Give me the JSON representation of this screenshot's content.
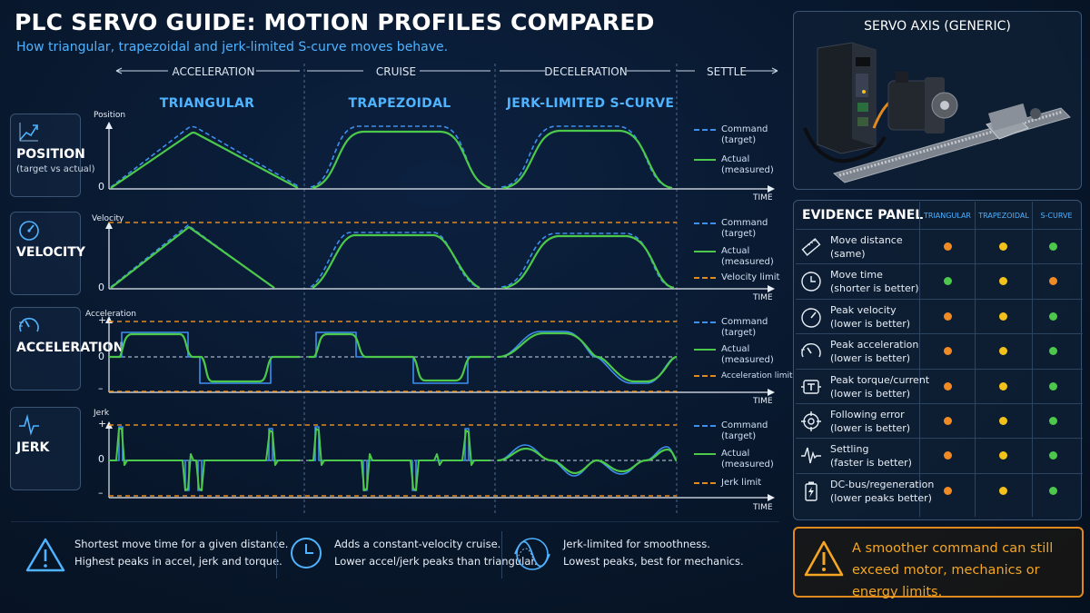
{
  "title": "PLC SERVO GUIDE: MOTION PROFILES COMPARED",
  "subtitle": "How triangular, trapezoidal and jerk-limited S-curve moves behave.",
  "phases": [
    "ACCELERATION",
    "CRUISE",
    "DECELERATION",
    "SETTLE"
  ],
  "profiles": [
    "TRIANGULAR",
    "TRAPEZOIDAL",
    "JERK-LIMITED S-CURVE"
  ],
  "rows": [
    {
      "label": "POSITION",
      "sub": "(target vs actual)",
      "axis": "Position",
      "icon": "position-graph-icon",
      "ticks": [
        "0"
      ],
      "legend": [
        {
          "text": "Command\n(target)"
        },
        {
          "text": "Actual\n(measured)"
        }
      ]
    },
    {
      "label": "VELOCITY",
      "sub": "",
      "axis": "Velocity",
      "icon": "speedometer-icon",
      "ticks": [
        "0"
      ],
      "legend": [
        {
          "text": "Command\n(target)"
        },
        {
          "text": "Actual\n(measured)"
        },
        {
          "text": "Velocity limit"
        }
      ]
    },
    {
      "label": "ACCELERATION",
      "sub": "",
      "axis": "Acceleration",
      "icon": "acceleration-icon",
      "ticks": [
        "+",
        "0",
        "–"
      ],
      "legend": [
        {
          "text": "Command\n(target)"
        },
        {
          "text": "Actual\n(measured)"
        },
        {
          "text": "Acceleration limit"
        }
      ]
    },
    {
      "label": "JERK",
      "sub": "",
      "axis": "Jerk",
      "icon": "jerk-wave-icon",
      "ticks": [
        "+",
        "0",
        "–"
      ],
      "legend": [
        {
          "text": "Command\n(target)"
        },
        {
          "text": "Actual\n(measured)"
        },
        {
          "text": "Jerk limit"
        }
      ]
    }
  ],
  "time_label": "TIME",
  "colors": {
    "command": "#3d8ff0",
    "actual": "#4cc94a",
    "limit": "#e08a1e",
    "accent": "#4fb3ff",
    "warn": "#f5a623"
  },
  "footer": [
    {
      "icon": "warning-triangle-icon",
      "line1": "Shortest move time for a given distance.",
      "line2": "Highest peaks in accel, jerk and torque."
    },
    {
      "icon": "clock-icon",
      "line1": "Adds a constant-velocity cruise.",
      "line2": "Lower accel/jerk peaks than triangular."
    },
    {
      "icon": "smooth-wave-icon",
      "line1": "Jerk-limited for smoothness.",
      "line2": "Lowest peaks, best for mechanics."
    }
  ],
  "servo_panel": {
    "title": "SERVO AXIS (GENERIC)"
  },
  "evidence": {
    "title": "EVIDENCE PANEL",
    "columns": [
      "TRIANGULAR",
      "TRAPEZOIDAL",
      "S-CURVE"
    ],
    "rows": [
      {
        "icon": "ruler-icon",
        "line1": "Move distance",
        "line2": "(same)",
        "ratings": [
          "orange",
          "yellow",
          "green"
        ]
      },
      {
        "icon": "clock-icon",
        "line1": "Move time",
        "line2": "(shorter is better)",
        "ratings": [
          "green",
          "yellow",
          "orange"
        ]
      },
      {
        "icon": "speedometer-icon",
        "line1": "Peak velocity",
        "line2": "(lower is better)",
        "ratings": [
          "orange",
          "yellow",
          "green"
        ]
      },
      {
        "icon": "gauge-icon",
        "line1": "Peak acceleration",
        "line2": "(lower is better)",
        "ratings": [
          "orange",
          "yellow",
          "green"
        ]
      },
      {
        "icon": "torque-icon",
        "line1": "Peak torque/current",
        "line2": "(lower is better)",
        "ratings": [
          "orange",
          "yellow",
          "green"
        ]
      },
      {
        "icon": "crosshair-icon",
        "line1": "Following error",
        "line2": "(lower is better)",
        "ratings": [
          "orange",
          "yellow",
          "green"
        ]
      },
      {
        "icon": "settling-wave-icon",
        "line1": "Settling",
        "line2": "(faster is better)",
        "ratings": [
          "orange",
          "yellow",
          "green"
        ]
      },
      {
        "icon": "battery-icon",
        "line1": "DC-bus/regeneration",
        "line2": "(lower peaks better)",
        "ratings": [
          "orange",
          "yellow",
          "green"
        ]
      }
    ],
    "rating_colors": {
      "orange": "#f08a24",
      "yellow": "#f2c21b",
      "green": "#4cc94a"
    }
  },
  "warning": {
    "line1": "A smoother command can still",
    "line2": "exceed motor, mechanics or energy limits."
  }
}
